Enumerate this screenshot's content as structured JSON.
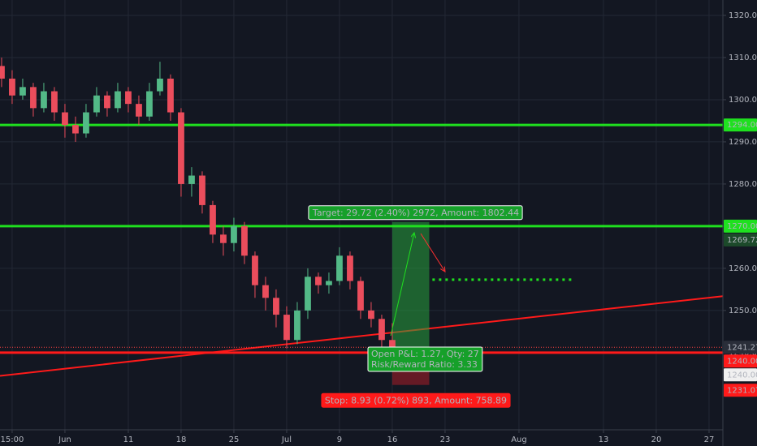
{
  "chart_data": {
    "type": "candlestick",
    "up_color": "#53b987",
    "down_color": "#eb4d5c",
    "grid": true,
    "xlim": [
      -6.15,
      62.31
    ],
    "xticks": [
      {
        "value": -5,
        "label": "15:00"
      },
      {
        "value": 0,
        "label": "Jun"
      },
      {
        "value": 6,
        "label": "11"
      },
      {
        "value": 11,
        "label": "18"
      },
      {
        "value": 16,
        "label": "25"
      },
      {
        "value": 21,
        "label": "Jul"
      },
      {
        "value": 26,
        "label": "9"
      },
      {
        "value": 31,
        "label": "16"
      },
      {
        "value": 36,
        "label": "23"
      },
      {
        "value": 43,
        "label": "Aug"
      },
      {
        "value": 51,
        "label": "13"
      },
      {
        "value": 56,
        "label": "20"
      },
      {
        "value": 61,
        "label": "27"
      }
    ],
    "ylim": [
      1221.7,
      1323.65
    ],
    "yticks": [
      {
        "value": 1320,
        "label": "1320.00"
      },
      {
        "value": 1310,
        "label": "1310.00"
      },
      {
        "value": 1300,
        "label": "1300.00"
      },
      {
        "value": 1290,
        "label": "1290.00"
      },
      {
        "value": 1280,
        "label": "1280.00"
      },
      {
        "value": 1270,
        "label": "1270.00"
      },
      {
        "value": 1260,
        "label": "1260.00"
      },
      {
        "value": 1250,
        "label": "1250.00"
      },
      {
        "value": 1240,
        "label": "1240.00"
      }
    ],
    "x": [
      -6,
      -5,
      -4,
      -3,
      -2,
      -1,
      0,
      1,
      2,
      3,
      4,
      5,
      6,
      7,
      8,
      9,
      10,
      11,
      12,
      13,
      14,
      15,
      16,
      17,
      18,
      19,
      20,
      21,
      22,
      23,
      24,
      25,
      26,
      27,
      28,
      29,
      30,
      31
    ],
    "open": [
      1308,
      1305,
      1301,
      1303,
      1298,
      1302,
      1297,
      1294,
      1292,
      1297,
      1301,
      1298,
      1302,
      1299,
      1296,
      1302,
      1305,
      1297,
      1280,
      1282,
      1275,
      1268,
      1266,
      1270,
      1263,
      1256,
      1253,
      1249,
      1243,
      1250,
      1258,
      1256,
      1257,
      1263,
      1257,
      1250,
      1248,
      1243
    ],
    "high": [
      1310,
      1307,
      1305,
      1304,
      1304,
      1303,
      1299,
      1296,
      1299,
      1303,
      1302,
      1304,
      1303,
      1301,
      1304,
      1309,
      1306,
      1298,
      1284,
      1283,
      1276,
      1270,
      1272,
      1271,
      1264,
      1258,
      1255,
      1251,
      1252,
      1260,
      1259,
      1259,
      1265,
      1264,
      1258,
      1252,
      1249,
      1247
    ],
    "low": [
      1303,
      1299,
      1300,
      1296,
      1297,
      1295,
      1291,
      1290,
      1291,
      1296,
      1296,
      1297,
      1297,
      1294,
      1295,
      1301,
      1295,
      1277,
      1277,
      1273,
      1266,
      1263,
      1264,
      1261,
      1253,
      1250,
      1246,
      1241,
      1242,
      1248,
      1254,
      1254,
      1256,
      1255,
      1248,
      1246,
      1241,
      1240
    ],
    "close": [
      1305,
      1301,
      1303,
      1298,
      1302,
      1297,
      1294,
      1292,
      1297,
      1301,
      1298,
      1302,
      1299,
      1296,
      1302,
      1305,
      1297,
      1280,
      1282,
      1275,
      1268,
      1266,
      1270,
      1263,
      1256,
      1253,
      1249,
      1243,
      1250,
      1258,
      1256,
      1257,
      1263,
      1257,
      1250,
      1248,
      1243,
      1241.27
    ],
    "hlines": [
      {
        "value": 1294,
        "color": "#1fe01f"
      },
      {
        "value": 1270,
        "color": "#1fe01f"
      },
      {
        "value": 1240,
        "color": "#ff1a1a"
      }
    ],
    "trendline": {
      "x": [
        -6.15,
        62.31
      ],
      "y": [
        1234.5,
        1253.4
      ],
      "color": "#ff1a1a"
    },
    "position": {
      "x": [
        31,
        34.5
      ],
      "entry": 1241.27,
      "target": 1270.99,
      "stop": 1232.34,
      "target_label": "Target: 29.72 (2.40%) 2972, Amount: 1802.44",
      "pnl_label": "Open P&L: 1.27, Qty: 27",
      "ratio_label": "Risk/Reward Ratio: 3.33",
      "stop_label": "Stop: 8.93 (0.72%) 893, Amount: 758.89"
    },
    "projection": {
      "x": [
        34.8,
        48.2
      ],
      "y": 1257.3,
      "color": "#1fe01f"
    },
    "price_labels": [
      {
        "value": 1294,
        "label": "1294.00",
        "bg": "#1fe01f",
        "fg": "#0a2a0a"
      },
      {
        "value": 1270,
        "label": "1270.00",
        "bg": "#1fe01f",
        "fg": "#0a2a0a"
      },
      {
        "value": 1269.72,
        "label": "1269.72",
        "bg": "#1c4a2a",
        "fg": "#e6ffe6"
      },
      {
        "value": 1241.27,
        "label": "1241.27",
        "bg": "#2a2e39",
        "fg": "#e6e6e6"
      },
      {
        "value": 1240,
        "label": "1240.00",
        "bg": "#ff1a1a",
        "fg": "#ffffff"
      },
      {
        "value": 1240,
        "label": "1240.00",
        "bg": "#f0f0f0",
        "fg": "#131722"
      },
      {
        "value": 1231.07,
        "label": "1231.07",
        "bg": "#ff1a1a",
        "fg": "#ffffff"
      }
    ]
  }
}
